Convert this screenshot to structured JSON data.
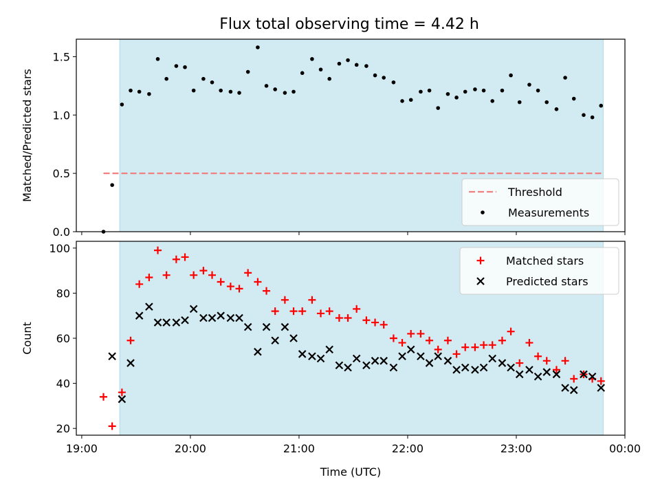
{
  "title": "Flux total observing time = 4.42 h",
  "colors": {
    "observing_span": "#add8e6",
    "threshold": "#f08080",
    "measurements": "#000000",
    "matched": "#ff0000",
    "predicted": "#000000"
  },
  "chart_data": [
    {
      "type": "scatter",
      "ylabel": "Matched/Predicted stars",
      "xlim": [
        -0.05,
        5.0
      ],
      "ylim": [
        0,
        1.65
      ],
      "yticks": [
        0.0,
        0.5,
        1.0,
        1.5
      ],
      "ytick_labels": [
        "0.0",
        "0.5",
        "1.0",
        "1.5"
      ],
      "shaded_span": [
        0.35,
        4.8
      ],
      "threshold": {
        "name": "Threshold",
        "value": 0.5,
        "x_range": [
          0.2,
          4.8
        ],
        "style": "dashed"
      },
      "legend_position": "lower right",
      "series": [
        {
          "name": "Measurements",
          "marker": "dot",
          "x": [
            0.2,
            0.28,
            0.37,
            0.45,
            0.53,
            0.62,
            0.7,
            0.78,
            0.87,
            0.95,
            1.03,
            1.12,
            1.2,
            1.28,
            1.37,
            1.45,
            1.53,
            1.62,
            1.7,
            1.78,
            1.87,
            1.95,
            2.03,
            2.12,
            2.2,
            2.28,
            2.37,
            2.45,
            2.53,
            2.62,
            2.7,
            2.78,
            2.87,
            2.95,
            3.03,
            3.12,
            3.2,
            3.28,
            3.37,
            3.45,
            3.53,
            3.62,
            3.7,
            3.78,
            3.87,
            3.95,
            4.03,
            4.12,
            4.2,
            4.28,
            4.37,
            4.45,
            4.53,
            4.62,
            4.7,
            4.78
          ],
          "y": [
            0.0,
            0.4,
            1.09,
            1.21,
            1.2,
            1.18,
            1.48,
            1.31,
            1.42,
            1.41,
            1.21,
            1.31,
            1.28,
            1.21,
            1.2,
            1.19,
            1.37,
            1.58,
            1.25,
            1.22,
            1.19,
            1.2,
            1.36,
            1.48,
            1.39,
            1.31,
            1.44,
            1.47,
            1.43,
            1.42,
            1.34,
            1.32,
            1.28,
            1.12,
            1.13,
            1.2,
            1.21,
            1.06,
            1.18,
            1.15,
            1.2,
            1.22,
            1.21,
            1.12,
            1.21,
            1.34,
            1.11,
            1.26,
            1.21,
            1.11,
            1.05,
            1.32,
            1.14,
            1.0,
            0.98,
            1.08
          ]
        }
      ]
    },
    {
      "type": "scatter",
      "ylabel": "Count",
      "xlabel": "Time (UTC)",
      "xlim": [
        -0.05,
        5.0
      ],
      "ylim": [
        17,
        103
      ],
      "yticks": [
        20,
        40,
        60,
        80,
        100
      ],
      "ytick_labels": [
        "20",
        "40",
        "60",
        "80",
        "100"
      ],
      "xticks": [
        0,
        1,
        2,
        3,
        4,
        5
      ],
      "xtick_labels": [
        "19:00",
        "20:00",
        "21:00",
        "22:00",
        "23:00",
        "00:00"
      ],
      "shaded_span": [
        0.35,
        4.8
      ],
      "legend_position": "upper right",
      "series": [
        {
          "name": "Matched stars",
          "marker": "plus",
          "x": [
            0.2,
            0.28,
            0.37,
            0.45,
            0.53,
            0.62,
            0.7,
            0.78,
            0.87,
            0.95,
            1.03,
            1.12,
            1.2,
            1.28,
            1.37,
            1.45,
            1.53,
            1.62,
            1.7,
            1.78,
            1.87,
            1.95,
            2.03,
            2.12,
            2.2,
            2.28,
            2.37,
            2.45,
            2.53,
            2.62,
            2.7,
            2.78,
            2.87,
            2.95,
            3.03,
            3.12,
            3.2,
            3.28,
            3.37,
            3.45,
            3.53,
            3.62,
            3.7,
            3.78,
            3.87,
            3.95,
            4.03,
            4.12,
            4.2,
            4.28,
            4.37,
            4.45,
            4.53,
            4.62,
            4.7,
            4.78
          ],
          "y": [
            34,
            21,
            36,
            59,
            84,
            87,
            99,
            88,
            95,
            96,
            88,
            90,
            88,
            85,
            83,
            82,
            89,
            85,
            81,
            72,
            77,
            72,
            72,
            77,
            71,
            72,
            69,
            69,
            73,
            68,
            67,
            66,
            60,
            58,
            62,
            62,
            59,
            55,
            59,
            53,
            56,
            56,
            57,
            57,
            59,
            63,
            49,
            58,
            52,
            50,
            46,
            50,
            42,
            44,
            42,
            41
          ]
        },
        {
          "name": "Predicted stars",
          "marker": "x",
          "x": [
            0.2,
            0.28,
            0.37,
            0.45,
            0.53,
            0.62,
            0.7,
            0.78,
            0.87,
            0.95,
            1.03,
            1.12,
            1.2,
            1.28,
            1.37,
            1.45,
            1.53,
            1.62,
            1.7,
            1.78,
            1.87,
            1.95,
            2.03,
            2.12,
            2.2,
            2.28,
            2.37,
            2.45,
            2.53,
            2.62,
            2.7,
            2.78,
            2.87,
            2.95,
            3.03,
            3.12,
            3.2,
            3.28,
            3.37,
            3.45,
            3.53,
            3.62,
            3.7,
            3.78,
            3.87,
            3.95,
            4.03,
            4.12,
            4.2,
            4.28,
            4.37,
            4.45,
            4.53,
            4.62,
            4.7,
            4.78
          ],
          "y": [
            null,
            52,
            33,
            49,
            70,
            74,
            67,
            67,
            67,
            68,
            73,
            69,
            69,
            70,
            69,
            69,
            65,
            54,
            65,
            59,
            65,
            60,
            53,
            52,
            51,
            55,
            48,
            47,
            51,
            48,
            50,
            50,
            47,
            52,
            55,
            52,
            49,
            52,
            50,
            46,
            47,
            46,
            47,
            51,
            49,
            47,
            44,
            46,
            43,
            45,
            44,
            38,
            37,
            44,
            43,
            38
          ]
        }
      ]
    }
  ]
}
